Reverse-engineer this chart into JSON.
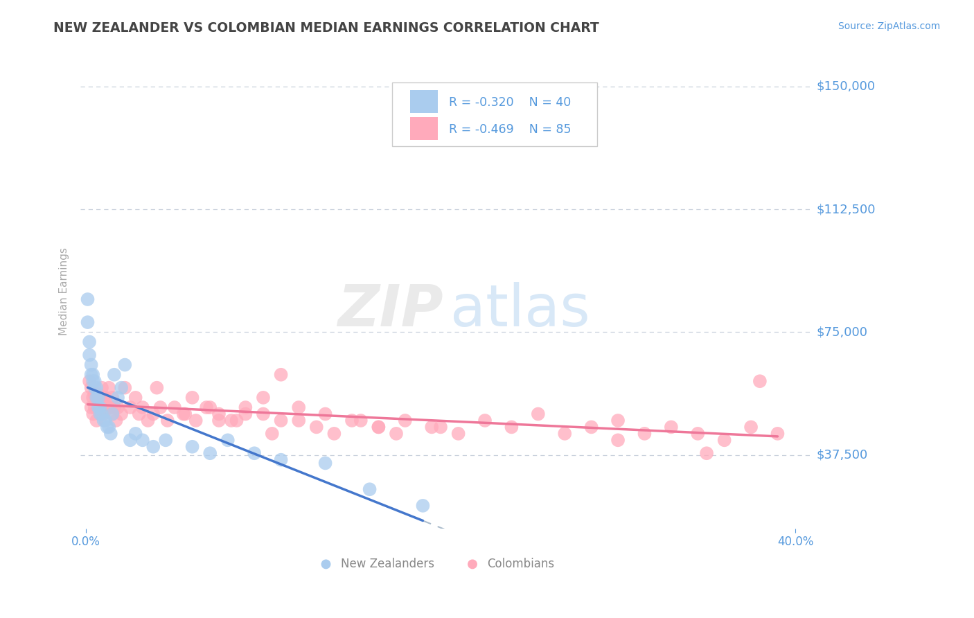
{
  "title": "NEW ZEALANDER VS COLOMBIAN MEDIAN EARNINGS CORRELATION CHART",
  "source": "Source: ZipAtlas.com",
  "ylabel": "Median Earnings",
  "xlim": [
    -0.003,
    0.41
  ],
  "ylim": [
    15000,
    160000
  ],
  "yticks": [
    37500,
    75000,
    112500,
    150000
  ],
  "ytick_labels": [
    "$37,500",
    "$75,000",
    "$112,500",
    "$150,000"
  ],
  "xtick_labels": [
    "0.0%",
    "40.0%"
  ],
  "xtick_vals": [
    0.0,
    0.4
  ],
  "background_color": "#ffffff",
  "grid_color": "#c8d0dc",
  "title_color": "#444444",
  "axis_label_color": "#5599dd",
  "ylabel_color": "#aaaaaa",
  "nz_color": "#aaccee",
  "col_color": "#ffaabb",
  "nz_line_color": "#4477cc",
  "col_line_color": "#ee7799",
  "dash_line_color": "#aabbcc",
  "legend_R_nz": "R = -0.320",
  "legend_N_nz": "N = 40",
  "legend_R_col": "R = -0.469",
  "legend_N_col": "N = 85",
  "nz_scatter_x": [
    0.001,
    0.001,
    0.002,
    0.002,
    0.003,
    0.003,
    0.004,
    0.004,
    0.005,
    0.005,
    0.006,
    0.006,
    0.007,
    0.007,
    0.008,
    0.008,
    0.009,
    0.01,
    0.011,
    0.012,
    0.013,
    0.014,
    0.015,
    0.016,
    0.018,
    0.02,
    0.022,
    0.025,
    0.028,
    0.032,
    0.038,
    0.045,
    0.06,
    0.07,
    0.08,
    0.095,
    0.11,
    0.135,
    0.16,
    0.19
  ],
  "nz_scatter_y": [
    85000,
    78000,
    72000,
    68000,
    65000,
    62000,
    62000,
    60000,
    60000,
    58000,
    58000,
    55000,
    55000,
    52000,
    52000,
    50000,
    50000,
    48000,
    48000,
    46000,
    46000,
    44000,
    50000,
    62000,
    55000,
    58000,
    65000,
    42000,
    44000,
    42000,
    40000,
    42000,
    40000,
    38000,
    42000,
    38000,
    36000,
    35000,
    27000,
    22000
  ],
  "col_scatter_x": [
    0.001,
    0.002,
    0.003,
    0.003,
    0.004,
    0.004,
    0.005,
    0.005,
    0.006,
    0.006,
    0.007,
    0.007,
    0.008,
    0.008,
    0.009,
    0.009,
    0.01,
    0.01,
    0.011,
    0.012,
    0.013,
    0.014,
    0.015,
    0.015,
    0.016,
    0.017,
    0.018,
    0.02,
    0.022,
    0.025,
    0.028,
    0.03,
    0.032,
    0.035,
    0.038,
    0.042,
    0.046,
    0.05,
    0.056,
    0.062,
    0.068,
    0.075,
    0.082,
    0.09,
    0.1,
    0.11,
    0.12,
    0.135,
    0.15,
    0.165,
    0.18,
    0.195,
    0.21,
    0.225,
    0.24,
    0.255,
    0.27,
    0.285,
    0.3,
    0.315,
    0.33,
    0.345,
    0.36,
    0.375,
    0.39,
    0.04,
    0.055,
    0.07,
    0.085,
    0.1,
    0.06,
    0.075,
    0.09,
    0.105,
    0.12,
    0.13,
    0.14,
    0.155,
    0.165,
    0.175,
    0.11,
    0.2,
    0.3,
    0.35,
    0.38
  ],
  "col_scatter_y": [
    55000,
    60000,
    58000,
    52000,
    55000,
    50000,
    56000,
    52000,
    55000,
    48000,
    56000,
    52000,
    55000,
    50000,
    58000,
    52000,
    55000,
    50000,
    55000,
    52000,
    58000,
    52000,
    50000,
    55000,
    52000,
    48000,
    52000,
    50000,
    58000,
    52000,
    55000,
    50000,
    52000,
    48000,
    50000,
    52000,
    48000,
    52000,
    50000,
    48000,
    52000,
    50000,
    48000,
    52000,
    50000,
    48000,
    52000,
    50000,
    48000,
    46000,
    48000,
    46000,
    44000,
    48000,
    46000,
    50000,
    44000,
    46000,
    48000,
    44000,
    46000,
    44000,
    42000,
    46000,
    44000,
    58000,
    50000,
    52000,
    48000,
    55000,
    55000,
    48000,
    50000,
    44000,
    48000,
    46000,
    44000,
    48000,
    46000,
    44000,
    62000,
    46000,
    42000,
    38000,
    60000
  ]
}
